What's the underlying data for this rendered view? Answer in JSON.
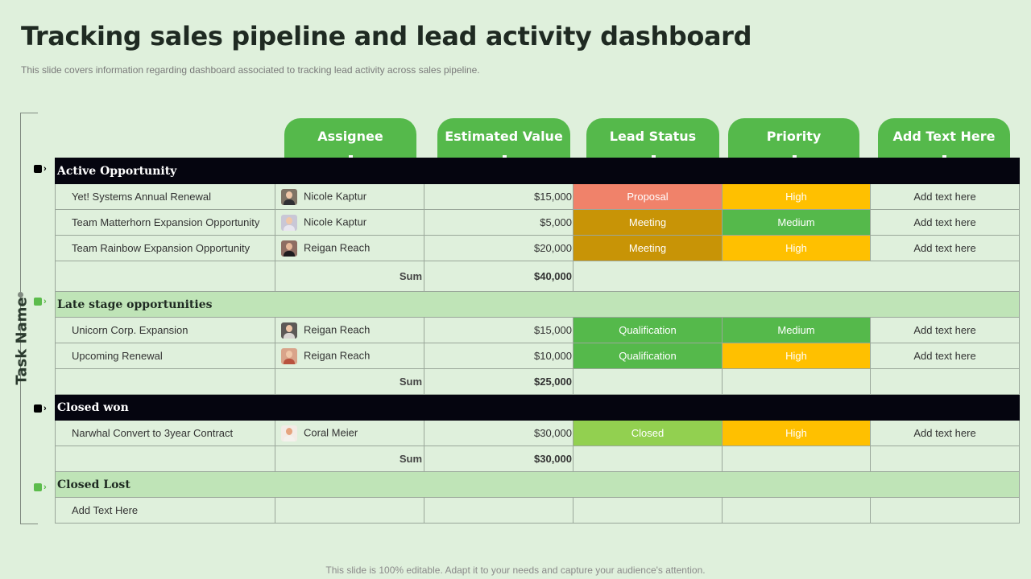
{
  "title": "Tracking sales pipeline and lead activity  dashboard",
  "subtitle": "This slide covers information regarding dashboard associated to tracking lead activity  across sales pipeline.",
  "footer": "This slide is 100% editable. Adapt it to your needs and capture your audience's attention.",
  "rail_label": "Task Name",
  "columns": [
    "Assignee",
    "Estimated Value",
    "Lead Status",
    "Priority",
    "Add Text Here"
  ],
  "colors": {
    "background": "#dff0dc",
    "header_green": "#55b94b",
    "dark_section": "#05050f",
    "light_section": "#bfe4b7",
    "proposal": "#f0826a",
    "meeting": "#c89406",
    "qualification": "#55b94b",
    "closed": "#92d050",
    "high": "#ffc000",
    "medium": "#55b94b"
  },
  "sections": [
    {
      "name": "Active Opportunity",
      "rows": [
        {
          "task": "Yet! Systems Annual Renewal",
          "assignee": "Nicole Kaptur",
          "value": "$15,000",
          "status": "Proposal",
          "priority": "High",
          "extra": "Add text here",
          "avatar_icon": "person-avatar-icon"
        },
        {
          "task": "Team Matterhorn Expansion Opportunity",
          "assignee": "Nicole Kaptur",
          "value": "$5,000",
          "status": "Meeting",
          "priority": "Medium",
          "extra": "Add text here",
          "avatar_icon": "person-avatar-icon"
        },
        {
          "task": "Team Rainbow Expansion Opportunity",
          "assignee": "Reigan Reach",
          "value": "$20,000",
          "status": "Meeting",
          "priority": "High",
          "extra": "Add text here",
          "avatar_icon": "person-avatar-icon"
        }
      ],
      "sum_label": "Sum",
      "sum_value": "$40,000"
    },
    {
      "name": "Late stage opportunities",
      "rows": [
        {
          "task": "Unicorn Corp. Expansion",
          "assignee": "Reigan Reach",
          "value": "$15,000",
          "status": "Qualification",
          "priority": "Medium",
          "extra": "Add text here",
          "avatar_icon": "person-avatar-icon"
        },
        {
          "task": "Upcoming Renewal",
          "assignee": "Reigan Reach",
          "value": "$10,000",
          "status": "Qualification",
          "priority": "High",
          "extra": "Add text here",
          "avatar_icon": "person-avatar-icon"
        }
      ],
      "sum_label": "Sum",
      "sum_value": "$25,000"
    },
    {
      "name": "Closed won",
      "rows": [
        {
          "task": "Narwhal Convert  to 3year Contract",
          "assignee": "Coral Meier",
          "value": "$30,000",
          "status": "Closed",
          "priority": "High",
          "extra": "Add text here",
          "avatar_icon": "person-avatar-icon"
        }
      ],
      "sum_label": "Sum",
      "sum_value": "$30,000"
    },
    {
      "name": "Closed Lost",
      "rows": [
        {
          "task": "Add Text Here"
        }
      ]
    }
  ]
}
